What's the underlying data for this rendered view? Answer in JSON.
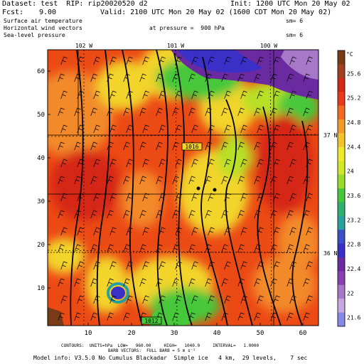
{
  "header": {
    "dataset": "Dataset: test  RIP: rip20020520 d2",
    "init": "Init: 1200 UTC Mon 20 May 02",
    "fcst_label": "Fcst:",
    "fcst_value": "9.00",
    "valid": "Valid: 2100 UTC Mon 20 May 02 (1600 CDT Mon 20 May 02)",
    "field1": "Surface air temperature",
    "field1_sm": "sm= 6",
    "field2": "Horizontal wind vectors",
    "field2_pressure": "at pressure =  900 hPa",
    "field3": "Sea-level pressure",
    "field3_sm": "sm= 6"
  },
  "map": {
    "x_ticks": [
      "10",
      "20",
      "30",
      "40",
      "50",
      "60"
    ],
    "y_ticks": [
      "10",
      "20",
      "30",
      "40",
      "50",
      "60"
    ],
    "longitude_labels": [
      "102 W",
      "101 W",
      "100 W"
    ],
    "latitude_labels": [
      "37 N",
      "36 N"
    ],
    "contour_labels": [
      "1016",
      "1012"
    ],
    "colors": {
      "warm": "#d62818",
      "hot": "#ec4a15",
      "orange": "#f28a2a",
      "yellow": "#f2d42a",
      "lime": "#b8e028",
      "green": "#46c83a",
      "teal": "#30b070",
      "blue": "#3a30c8",
      "purple": "#6a2aa0",
      "brown": "#7a3a18"
    }
  },
  "colorbar": {
    "unit": "°C",
    "labels": [
      "25.6",
      "25.2",
      "24.8",
      "24.4",
      "24",
      "23.6",
      "23.2",
      "22.8",
      "22.4",
      "22",
      "21.6"
    ],
    "colors": [
      "#7a3a18",
      "#a04020",
      "#d62818",
      "#ea3a1c",
      "#f26a24",
      "#f29a2a",
      "#f2c42a",
      "#f2e82a",
      "#d0e828",
      "#98dc28",
      "#46c83a",
      "#30b070",
      "#28a0a0",
      "#3a50c8",
      "#3a30c8",
      "#6a2aa0",
      "#8a40b0",
      "#a878c8",
      "#c8a8e0",
      "#8888e8"
    ]
  },
  "footer": {
    "contours": "CONTOURS:  UNITS=hPa  LOW=   960.00     HIGH=   1040.0     INTERVAL=   1.0000",
    "barbs": "BARB VECTORS:  FULL BARB = 5 m s⁻¹",
    "model": "Model info: V3.5.0 No Cumulus Blackadar  Simple ice   4 km,  29 levels,    7 sec"
  }
}
